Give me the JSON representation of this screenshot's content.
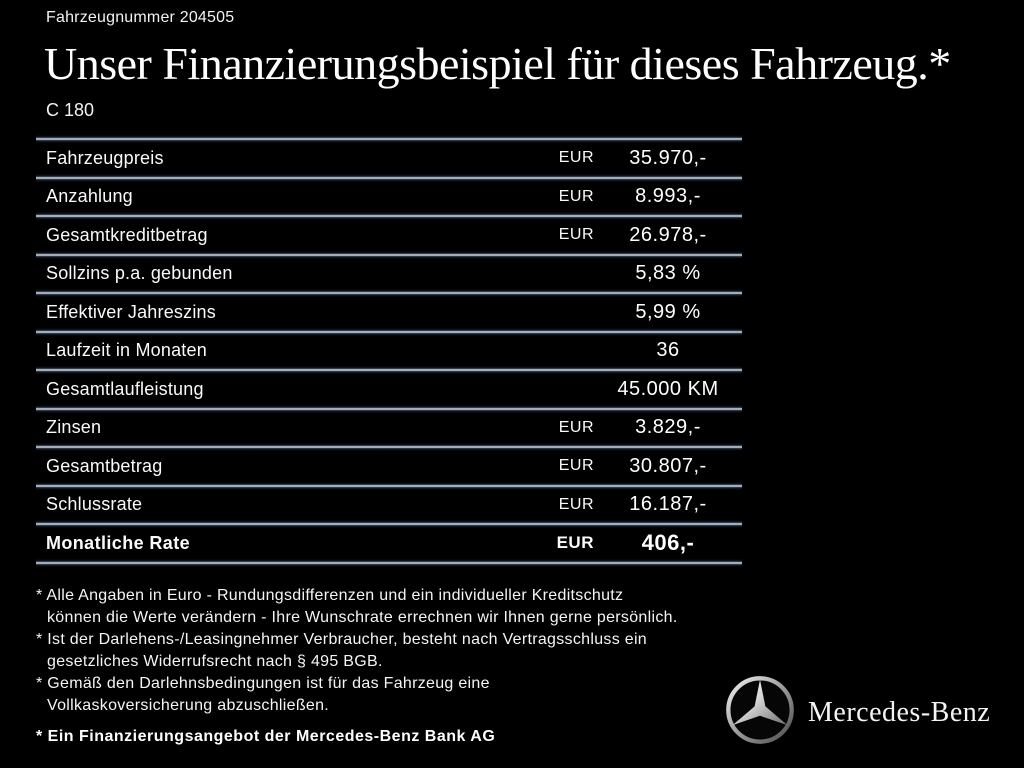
{
  "header": {
    "vehicle_number": "Fahrzeugnummer 204505",
    "title": "Unser Finanzierungsbeispiel für dieses Fahrzeug.*",
    "model": "C 180"
  },
  "table": {
    "rows": [
      {
        "label": "Fahrzeugpreis",
        "currency": "EUR",
        "value": "35.970,-",
        "bold": false
      },
      {
        "label": "Anzahlung",
        "currency": "EUR",
        "value": "8.993,-",
        "bold": false
      },
      {
        "label": "Gesamtkreditbetrag",
        "currency": "EUR",
        "value": "26.978,-",
        "bold": false
      },
      {
        "label": "Sollzins p.a. gebunden",
        "currency": "",
        "value": "5,83 %",
        "bold": false
      },
      {
        "label": "Effektiver Jahreszins",
        "currency": "",
        "value": "5,99 %",
        "bold": false
      },
      {
        "label": "Laufzeit in Monaten",
        "currency": "",
        "value": "36",
        "bold": false
      },
      {
        "label": "Gesamtlaufleistung",
        "currency": "",
        "value": "45.000 KM",
        "bold": false
      },
      {
        "label": "Zinsen",
        "currency": "EUR",
        "value": "3.829,-",
        "bold": false
      },
      {
        "label": "Gesamtbetrag",
        "currency": "EUR",
        "value": "30.807,-",
        "bold": false
      },
      {
        "label": "Schlussrate",
        "currency": "EUR",
        "value": "16.187,-",
        "bold": false
      },
      {
        "label": "Monatliche Rate",
        "currency": "EUR",
        "value": "406,-",
        "bold": true
      }
    ]
  },
  "footnotes": {
    "items": [
      {
        "lines": [
          "* Alle Angaben in Euro - Rundungsdifferenzen und ein individueller Kreditschutz",
          "können die Werte verändern - Ihre Wunschrate errechnen wir Ihnen gerne persönlich."
        ]
      },
      {
        "lines": [
          "* Ist der Darlehens-/Leasingnehmer Verbraucher, besteht nach Vertragsschluss ein",
          "gesetzliches Widerrufsrecht nach § 495 BGB."
        ]
      },
      {
        "lines": [
          "* Gemäß den Darlehnsbedingungen ist für das Fahrzeug eine",
          "Vollkaskoversicherung abzuschließen."
        ]
      }
    ],
    "bank_note": "* Ein Finanzierungsangebot der Mercedes-Benz Bank AG"
  },
  "branding": {
    "logo": "mercedes-star-icon",
    "brand_text": "Mercedes-Benz"
  },
  "colors": {
    "background": "#000000",
    "text": "#ffffff",
    "divider_line": "#cfd7e0",
    "divider_glow": "#121b29"
  }
}
